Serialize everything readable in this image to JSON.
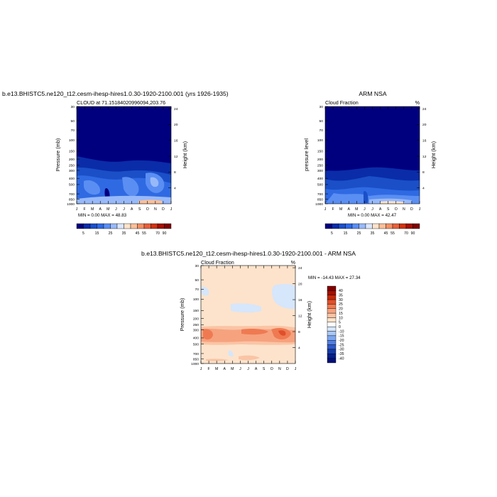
{
  "panel_top_left": {
    "title": "b.e13.BHISTC5.ne120_t12.cesm-ihesp-hires1.0.30-1920-2100.001 (yrs 1926-1935)",
    "subtitle": "CLOUD at 71.15184020996094,203.76",
    "minmax": "MIN =   0.00 MAX =  48.83",
    "ylabel": "Pressure (mb)",
    "ylabel_right": "Height (km)"
  },
  "panel_top_right": {
    "title": "ARM NSA",
    "subtitle_left": "Cloud Fraction",
    "subtitle_right": "%",
    "minmax": "MIN =   0.00 MAX =  42.47",
    "ylabel": "pressure level",
    "ylabel_right": "Height (km)"
  },
  "panel_bottom": {
    "title": "b.e13.BHISTC5.ne120_t12.cesm-ihesp-hires1.0.30-1920-2100.001 - ARM NSA",
    "subtitle_left": "Cloud Fraction",
    "subtitle_right": "%",
    "minmax": "MIN = -14.43 MAX =  27.34",
    "ylabel": "Pressure (mb)",
    "ylabel_right": "Height (km)"
  },
  "chart_data": [
    {
      "type": "heatmap",
      "panel": "panel_top_left",
      "x_ticks": [
        "J",
        "F",
        "M",
        "A",
        "M",
        "J",
        "J",
        "A",
        "S",
        "O",
        "N",
        "D",
        "J"
      ],
      "y_ticks": [
        "30",
        "50",
        "70",
        "100",
        "150",
        "200",
        "250",
        "300",
        "400",
        "500",
        "700",
        "850",
        "1000"
      ],
      "y_ticks_right": [
        "24",
        "20",
        "16",
        "12",
        "8",
        "4"
      ],
      "y_scale": "log",
      "colorbar_labels": [
        "5",
        "15",
        "25",
        "35",
        "45",
        "55",
        "70",
        "90"
      ],
      "colorbar_colors": [
        "#00007f",
        "#0a2ca8",
        "#1a4fc8",
        "#2f6ae3",
        "#5a8ef2",
        "#98b9f9",
        "#dbe6fd",
        "#fde3cb",
        "#f9c09a",
        "#f29066",
        "#e5603d",
        "#cc3415",
        "#a31000",
        "#7f0000"
      ],
      "series_description_levels": [
        {
          "pressure": 30,
          "values": [
            1,
            1,
            1,
            1,
            1,
            1,
            1,
            1,
            1,
            1,
            1,
            1,
            1
          ]
        },
        {
          "pressure": 100,
          "values": [
            1,
            1,
            1,
            1,
            1,
            1,
            1,
            1,
            1,
            1,
            1,
            1,
            1
          ]
        },
        {
          "pressure": 200,
          "values": [
            8,
            12,
            10,
            10,
            12,
            14,
            14,
            12,
            10,
            10,
            10,
            8,
            8
          ]
        },
        {
          "pressure": 300,
          "values": [
            18,
            20,
            18,
            18,
            22,
            26,
            28,
            24,
            22,
            20,
            18,
            18,
            18
          ]
        },
        {
          "pressure": 500,
          "values": [
            22,
            20,
            22,
            28,
            32,
            24,
            22,
            30,
            34,
            30,
            26,
            24,
            22
          ]
        },
        {
          "pressure": 700,
          "values": [
            24,
            22,
            24,
            24,
            14,
            22,
            26,
            32,
            30,
            30,
            28,
            26,
            24
          ]
        },
        {
          "pressure": 850,
          "values": [
            28,
            28,
            28,
            30,
            24,
            30,
            34,
            40,
            42,
            38,
            34,
            30,
            28
          ]
        },
        {
          "pressure": 1000,
          "values": [
            36,
            36,
            36,
            40,
            40,
            42,
            46,
            48,
            46,
            44,
            40,
            36,
            36
          ]
        }
      ]
    },
    {
      "type": "heatmap",
      "panel": "panel_top_right",
      "x_ticks": [
        "J",
        "F",
        "M",
        "A",
        "M",
        "J",
        "J",
        "A",
        "S",
        "O",
        "N",
        "D",
        "J"
      ],
      "y_ticks": [
        "30",
        "50",
        "70",
        "100",
        "150",
        "200",
        "250",
        "300",
        "400",
        "500",
        "700",
        "850",
        "1000"
      ],
      "y_ticks_right": [
        "24",
        "20",
        "16",
        "12",
        "8",
        "4"
      ],
      "y_scale": "log",
      "colorbar_labels": [
        "5",
        "15",
        "25",
        "35",
        "45",
        "55",
        "70",
        "90"
      ],
      "colorbar_colors": [
        "#00007f",
        "#0a2ca8",
        "#1a4fc8",
        "#2f6ae3",
        "#5a8ef2",
        "#98b9f9",
        "#dbe6fd",
        "#fde3cb",
        "#f9c09a",
        "#f29066",
        "#e5603d",
        "#cc3415",
        "#a31000",
        "#7f0000"
      ],
      "series_description_levels": [
        {
          "pressure": 30,
          "values": [
            0,
            0,
            0,
            0,
            0,
            0,
            0,
            0,
            0,
            0,
            0,
            0,
            0
          ]
        },
        {
          "pressure": 200,
          "values": [
            1,
            1,
            1,
            1,
            1,
            1,
            1,
            1,
            1,
            1,
            1,
            1,
            1
          ]
        },
        {
          "pressure": 300,
          "values": [
            4,
            4,
            4,
            6,
            6,
            8,
            8,
            8,
            6,
            6,
            6,
            4,
            4
          ]
        },
        {
          "pressure": 500,
          "values": [
            10,
            8,
            8,
            10,
            12,
            14,
            14,
            16,
            14,
            12,
            12,
            10,
            10
          ]
        },
        {
          "pressure": 700,
          "values": [
            16,
            14,
            14,
            18,
            20,
            14,
            18,
            22,
            26,
            24,
            20,
            18,
            16
          ]
        },
        {
          "pressure": 850,
          "values": [
            22,
            20,
            20,
            26,
            30,
            28,
            30,
            36,
            38,
            36,
            28,
            24,
            22
          ]
        },
        {
          "pressure": 1000,
          "values": [
            26,
            24,
            24,
            30,
            36,
            38,
            40,
            42,
            40,
            38,
            32,
            28,
            26
          ]
        }
      ]
    },
    {
      "type": "heatmap",
      "panel": "panel_bottom",
      "x_ticks": [
        "J",
        "F",
        "M",
        "A",
        "M",
        "J",
        "J",
        "A",
        "S",
        "O",
        "N",
        "D",
        "J"
      ],
      "y_ticks": [
        "30",
        "50",
        "70",
        "100",
        "150",
        "200",
        "250",
        "300",
        "400",
        "500",
        "700",
        "850",
        "1000"
      ],
      "y_ticks_right": [
        "24",
        "20",
        "16",
        "12",
        "8",
        "4"
      ],
      "y_scale": "log",
      "colorbar_labels": [
        "40",
        "35",
        "30",
        "25",
        "20",
        "15",
        "10",
        "5",
        "0",
        "-10",
        "-15",
        "-20",
        "-25",
        "-30",
        "-35",
        "-40"
      ],
      "colorbar_colors": [
        "#7f0000",
        "#a31000",
        "#c42a0a",
        "#e04f2b",
        "#ef7a52",
        "#f6a27e",
        "#fac4a5",
        "#fde3cb",
        "#ffffff",
        "#d6e6fb",
        "#a9c8f6",
        "#7ea6ee",
        "#537fe0",
        "#2e59c9",
        "#153aa6",
        "#05208a",
        "#00107a"
      ],
      "series_description_levels": [
        {
          "pressure": 30,
          "values": [
            3,
            3,
            3,
            3,
            3,
            3,
            3,
            3,
            3,
            3,
            3,
            3,
            3
          ]
        },
        {
          "pressure": 100,
          "values": [
            -5,
            3,
            3,
            3,
            3,
            3,
            3,
            3,
            3,
            3,
            -5,
            -5,
            -5
          ]
        },
        {
          "pressure": 200,
          "values": [
            6,
            5,
            5,
            5,
            5,
            5,
            6,
            6,
            6,
            6,
            6,
            6,
            6
          ]
        },
        {
          "pressure": 300,
          "values": [
            22,
            18,
            12,
            10,
            14,
            18,
            18,
            16,
            14,
            18,
            25,
            20,
            18
          ]
        },
        {
          "pressure": 500,
          "values": [
            6,
            5,
            5,
            5,
            4,
            -4,
            4,
            5,
            5,
            5,
            6,
            6,
            6
          ]
        },
        {
          "pressure": 850,
          "values": [
            4,
            6,
            6,
            6,
            6,
            6,
            5,
            5,
            5,
            5,
            5,
            5,
            4
          ]
        },
        {
          "pressure": 1000,
          "values": [
            3,
            3,
            3,
            3,
            3,
            3,
            3,
            3,
            3,
            3,
            3,
            3,
            3
          ]
        }
      ]
    }
  ]
}
